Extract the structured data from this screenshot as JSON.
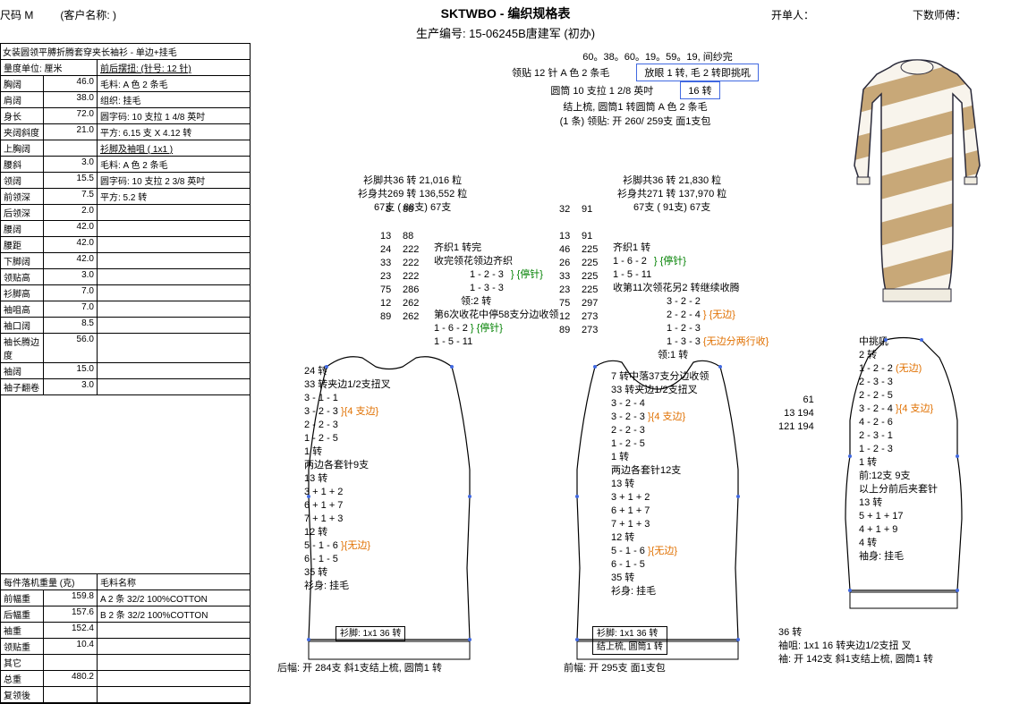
{
  "header": {
    "title": "SKTWBO - 编织规格表",
    "subtitle": "生产编号: 15-06245B唐建军 (初办)",
    "size_label": "尺码 M",
    "customer_label": "(客户名称: )",
    "opener_label": "开单人：",
    "counter_label": "下数师傅："
  },
  "left_panel": {
    "title_row": "女装圆领平膊折腾套穿夹长袖衫 - 单边+挂毛",
    "unit_row": "量度单位: 厘米",
    "measurements": [
      {
        "label": "胸阔",
        "val": "46.0"
      },
      {
        "label": "肩阔",
        "val": "38.0"
      },
      {
        "label": "身长",
        "val": "72.0"
      },
      {
        "label": "夹阔斜度",
        "val": "21.0"
      },
      {
        "label": "上胸阔",
        "val": ""
      },
      {
        "label": "腰斜",
        "val": "3.0"
      },
      {
        "label": "领阔",
        "val": "15.5"
      },
      {
        "label": "前领深",
        "val": "7.5"
      },
      {
        "label": "后领深",
        "val": "2.0"
      },
      {
        "label": "腰阔",
        "val": "42.0"
      },
      {
        "label": "腰距",
        "val": "42.0"
      },
      {
        "label": "下脚阔",
        "val": "42.0"
      },
      {
        "label": "领贴高",
        "val": "3.0"
      },
      {
        "label": "衫脚高",
        "val": "7.0"
      },
      {
        "label": "袖咀高",
        "val": "7.0"
      },
      {
        "label": "袖口阔",
        "val": "8.5"
      },
      {
        "label": "袖长腾边度",
        "val": "56.0"
      },
      {
        "label": "袖阔",
        "val": "15.0"
      },
      {
        "label": "袖子翻卷",
        "val": "3.0"
      }
    ],
    "right_info": {
      "section1_head": "前后摆扭: (针号: 12 针)",
      "section1": [
        "毛料: A 色 2 条毛",
        "组织: 挂毛",
        "圆字码: 10 支拉 1 4/8 英吋",
        "平方: 6.15 支 X 4.12 转"
      ],
      "section2_head": "衫脚及袖咀 ( 1x1  )",
      "section2": [
        "毛料: A 色 2 条毛",
        "圆字码: 10 支拉 2 3/8 英吋",
        "平方: 5.2 转"
      ]
    },
    "weight": {
      "title": "每件落机重量 (克)",
      "rows": [
        {
          "label": "前幅重",
          "val": "159.8",
          "mat": "A  2 条 32/2 100%COTTON"
        },
        {
          "label": "后幅重",
          "val": "157.6",
          "mat": "B  2 条 32/2 100%COTTON"
        },
        {
          "label": "袖重",
          "val": "152.4",
          "mat": ""
        },
        {
          "label": "领贴重",
          "val": "10.4",
          "mat": ""
        },
        {
          "label": "其它",
          "val": "",
          "mat": ""
        },
        {
          "label": "总重",
          "val": "480.2",
          "mat": ""
        },
        {
          "label": "复领後",
          "val": "",
          "mat": ""
        }
      ],
      "mat_head": "毛料名称"
    }
  },
  "collar": {
    "line1": "60。38。60。19。59。19, 间纱完",
    "line2_l": "领贴  12 针 A 色 2 条毛",
    "line2_r": "放眼 1 转, 毛 2 转即挑吼",
    "line3_l": "圆筒 10 支拉 1 2/8 英吋",
    "line3_r": "16 转",
    "line4": "结上梳, 圆筒1 转圆筒 A 色 2 条毛",
    "line5": "(1 条) 领贴: 开 260/ 259支 面1支包"
  },
  "back": {
    "header": [
      "衫脚共36 转 21,016 粒",
      "衫身共269 转 136,552 粒",
      "67支 ( 88支) 67支"
    ],
    "nums_l": [
      "8",
      "",
      "13",
      "24",
      "33",
      "23",
      "75",
      "12",
      "89"
    ],
    "nums_r": [
      "88",
      "",
      "88",
      "222",
      "222",
      "222",
      "286",
      "262",
      "262"
    ],
    "instr": [
      "齐织1 转完",
      "收完领花领边齐织",
      "",
      "",
      "领:2 转",
      "第6次收花中停58支分边收领"
    ],
    "sub1": [
      "1 - 2 - 3",
      "1 - 3 - 3"
    ],
    "stop1": "{停针}",
    "sub2": [
      "1 - 6 - 2",
      "1 - 5 - 11"
    ],
    "stop2": "{停针}",
    "sub3": [
      "24 转",
      "33 转夹边1/2支扭叉",
      "3 - 1 - 1",
      "3 - 2 - 3",
      "2 - 2 - 3",
      "1 - 2 - 5",
      "1 转",
      "两边各套针9支",
      "13 转",
      "3 + 1 + 2",
      "6 + 1 + 7",
      "7 + 1 + 3",
      "12 转",
      "5 - 1 - 6",
      "6 - 1 - 5",
      "35 转",
      "衫身: 挂毛"
    ],
    "edge_label": "{4 支边}",
    "no_edge": "{无边}",
    "foot": "衫脚: 1x1    36 转",
    "bottom": "后幅: 开 284支 斜1支结上梳, 圆筒1 转"
  },
  "front": {
    "header": [
      "衫脚共36 转 21,830 粒",
      "衫身共271 转 137,970 粒",
      "67支 ( 91支) 67支"
    ],
    "nums_l": [
      "32",
      "",
      "13",
      "46",
      "26",
      "33",
      "23",
      "75",
      "12",
      "89"
    ],
    "nums_r": [
      "91",
      "",
      "91",
      "225",
      "225",
      "225",
      "225",
      "297",
      "273",
      "273"
    ],
    "instr": [
      "齐织1 转",
      "1 - 6 - 2",
      "1 - 5 - 11",
      "收第11次领花另2 转继续收腾"
    ],
    "stop1": "{停针}",
    "sub1": [
      "3 - 2 - 2",
      "2 - 2 - 4",
      "1 - 2 - 3",
      "1 - 3 - 3"
    ],
    "no_edge1": "{无边}",
    "no_edge2": "{无边分两行收}",
    "neck": "领:1 转",
    "sub2": [
      "7 转中落37支分边收领",
      "33 转夹边1/2支扭叉",
      "3 - 2 - 4",
      "3 - 2 - 3",
      "2 - 2 - 3",
      "1 - 2 - 5",
      "1 转",
      "两边各套针12支",
      "13 转",
      "3 + 1 + 2",
      "6 + 1 + 7",
      "7 + 1 + 3",
      "12 转",
      "5 - 1 - 6",
      "6 - 1 - 5",
      "35 转",
      "衫身: 挂毛"
    ],
    "edge_label": "{4 支边}",
    "no_edge3": "{无边}",
    "foot": "衫脚: 1x1    36 转",
    "foot2": "结上梳, 圆筒1 转",
    "bottom": "前幅: 开 295支 面1支包"
  },
  "sleeve": {
    "top": [
      "中挑吼",
      "2 转",
      "1 - 2 - 2",
      "2 - 3 - 3",
      "2 - 2 - 5",
      "3 - 2 - 4",
      "4 - 2 - 6",
      "2 - 3 - 1",
      "1 - 2 - 3",
      "1 转"
    ],
    "no_edge": "(无边)",
    "edge_label": "{4 支边}",
    "mid": [
      "前:12支        9支",
      "以上分前后夹套针",
      "13 转",
      "5 + 1 + 17",
      "4 + 1 + 9",
      "4 转",
      "袖身: 挂毛"
    ],
    "nums": [
      " 61",
      "13  194",
      "121  194"
    ],
    "foot": "36 转",
    "foot2": "袖咀: 1x1    16 转夹边1/2支扭 叉",
    "bottom": "袖: 开 142支 斜1支结上梳, 圆筒1 转"
  },
  "colors": {
    "stripe1": "#b8956a",
    "stripe2": "#f5f0e8",
    "outline": "#2a2a3a"
  }
}
